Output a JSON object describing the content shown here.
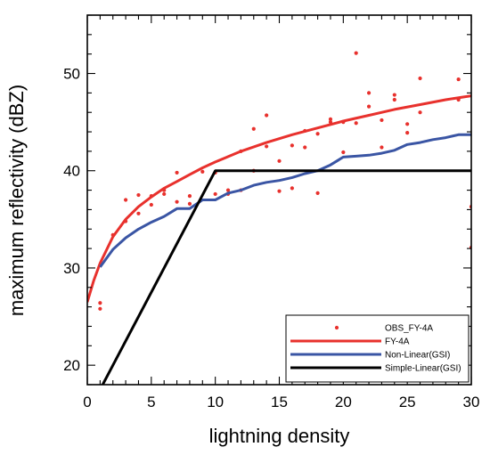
{
  "chart_data": {
    "type": "line",
    "xlabel": "lightning density",
    "ylabel": "maximum reflectivity (dBZ)",
    "xlim": [
      0,
      30
    ],
    "ylim": [
      18,
      56
    ],
    "x_ticks": [
      0,
      5,
      10,
      15,
      20,
      25,
      30
    ],
    "y_ticks": [
      20,
      30,
      40,
      50
    ],
    "grid": false,
    "legend_position": "bottom-right",
    "legend": [
      {
        "label": "OBS_FY-4A",
        "kind": "marker",
        "color": "#e8312d"
      },
      {
        "label": "FY-4A",
        "kind": "line",
        "color": "#e8312d"
      },
      {
        "label": "Non-Linear(GSI)",
        "kind": "line",
        "color": "#3a55a4"
      },
      {
        "label": "Simple-Linear(GSI)",
        "kind": "line",
        "color": "#000000"
      }
    ],
    "series": [
      {
        "label": "OBS_FY-4A",
        "kind": "scatter",
        "color": "#e8312d",
        "points": [
          [
            1,
            26.4
          ],
          [
            1,
            25.8
          ],
          [
            2,
            33.4
          ],
          [
            3,
            37.0
          ],
          [
            3,
            34.8
          ],
          [
            4,
            37.5
          ],
          [
            4,
            35.6
          ],
          [
            5,
            37.4
          ],
          [
            5,
            36.5
          ],
          [
            6,
            38.0
          ],
          [
            6,
            37.6
          ],
          [
            7,
            39.8
          ],
          [
            7,
            36.8
          ],
          [
            8,
            37.4
          ],
          [
            8,
            36.6
          ],
          [
            9,
            39.9
          ],
          [
            10,
            39.8
          ],
          [
            10,
            37.6
          ],
          [
            11,
            38.0
          ],
          [
            11,
            37.6
          ],
          [
            12,
            42.0
          ],
          [
            12,
            38.0
          ],
          [
            13,
            44.3
          ],
          [
            13,
            40.0
          ],
          [
            14,
            45.7
          ],
          [
            14,
            42.5
          ],
          [
            15,
            41.0
          ],
          [
            15,
            37.9
          ],
          [
            16,
            42.6
          ],
          [
            16,
            38.2
          ],
          [
            17,
            44.1
          ],
          [
            17,
            42.4
          ],
          [
            18,
            43.8
          ],
          [
            18,
            37.7
          ],
          [
            19,
            45.3
          ],
          [
            19,
            45.0
          ],
          [
            20,
            41.9
          ],
          [
            20,
            45.0
          ],
          [
            21,
            52.1
          ],
          [
            21,
            44.9
          ],
          [
            22,
            48.0
          ],
          [
            22,
            46.6
          ],
          [
            23,
            42.4
          ],
          [
            23,
            45.2
          ],
          [
            24,
            47.8
          ],
          [
            24,
            47.3
          ],
          [
            25,
            44.8
          ],
          [
            25,
            43.9
          ],
          [
            26,
            49.5
          ],
          [
            26,
            46.0
          ],
          [
            29,
            49.4
          ],
          [
            29,
            47.3
          ],
          [
            30,
            36.3
          ],
          [
            30,
            32.1
          ]
        ]
      },
      {
        "label": "FY-4A",
        "kind": "line",
        "color": "#e8312d",
        "points": [
          [
            0,
            26.5
          ],
          [
            0.5,
            28.7
          ],
          [
            1,
            30.5
          ],
          [
            2,
            33.2
          ],
          [
            3,
            35.0
          ],
          [
            4,
            36.3
          ],
          [
            5,
            37.3
          ],
          [
            6,
            38.2
          ],
          [
            7,
            38.9
          ],
          [
            8,
            39.6
          ],
          [
            9,
            40.3
          ],
          [
            10,
            40.9
          ],
          [
            12,
            42.0
          ],
          [
            14,
            42.9
          ],
          [
            16,
            43.7
          ],
          [
            18,
            44.4
          ],
          [
            20,
            45.1
          ],
          [
            22,
            45.7
          ],
          [
            24,
            46.3
          ],
          [
            26,
            46.8
          ],
          [
            28,
            47.3
          ],
          [
            30,
            47.7
          ]
        ]
      },
      {
        "label": "Non-Linear(GSI)",
        "kind": "line",
        "color": "#3a55a4",
        "points": [
          [
            1,
            30.1
          ],
          [
            2,
            31.9
          ],
          [
            3,
            33.1
          ],
          [
            4,
            34.0
          ],
          [
            5,
            34.7
          ],
          [
            6,
            35.3
          ],
          [
            7,
            36.1
          ],
          [
            8,
            36.1
          ],
          [
            9,
            37.0
          ],
          [
            10,
            37.0
          ],
          [
            11,
            37.7
          ],
          [
            12,
            38.0
          ],
          [
            13,
            38.5
          ],
          [
            14,
            38.8
          ],
          [
            15,
            39.0
          ],
          [
            16,
            39.3
          ],
          [
            17,
            39.7
          ],
          [
            18,
            40.0
          ],
          [
            19,
            40.6
          ],
          [
            20,
            41.4
          ],
          [
            21,
            41.5
          ],
          [
            22,
            41.6
          ],
          [
            23,
            41.8
          ],
          [
            24,
            42.1
          ],
          [
            25,
            42.7
          ],
          [
            26,
            42.9
          ],
          [
            27,
            43.2
          ],
          [
            28,
            43.4
          ],
          [
            29,
            43.7
          ],
          [
            30,
            43.7
          ]
        ]
      },
      {
        "label": "Simple-Linear(GSI)",
        "kind": "line",
        "color": "#000000",
        "points": [
          [
            0,
            15.0
          ],
          [
            10,
            40.0
          ],
          [
            30,
            40.0
          ]
        ]
      }
    ]
  }
}
